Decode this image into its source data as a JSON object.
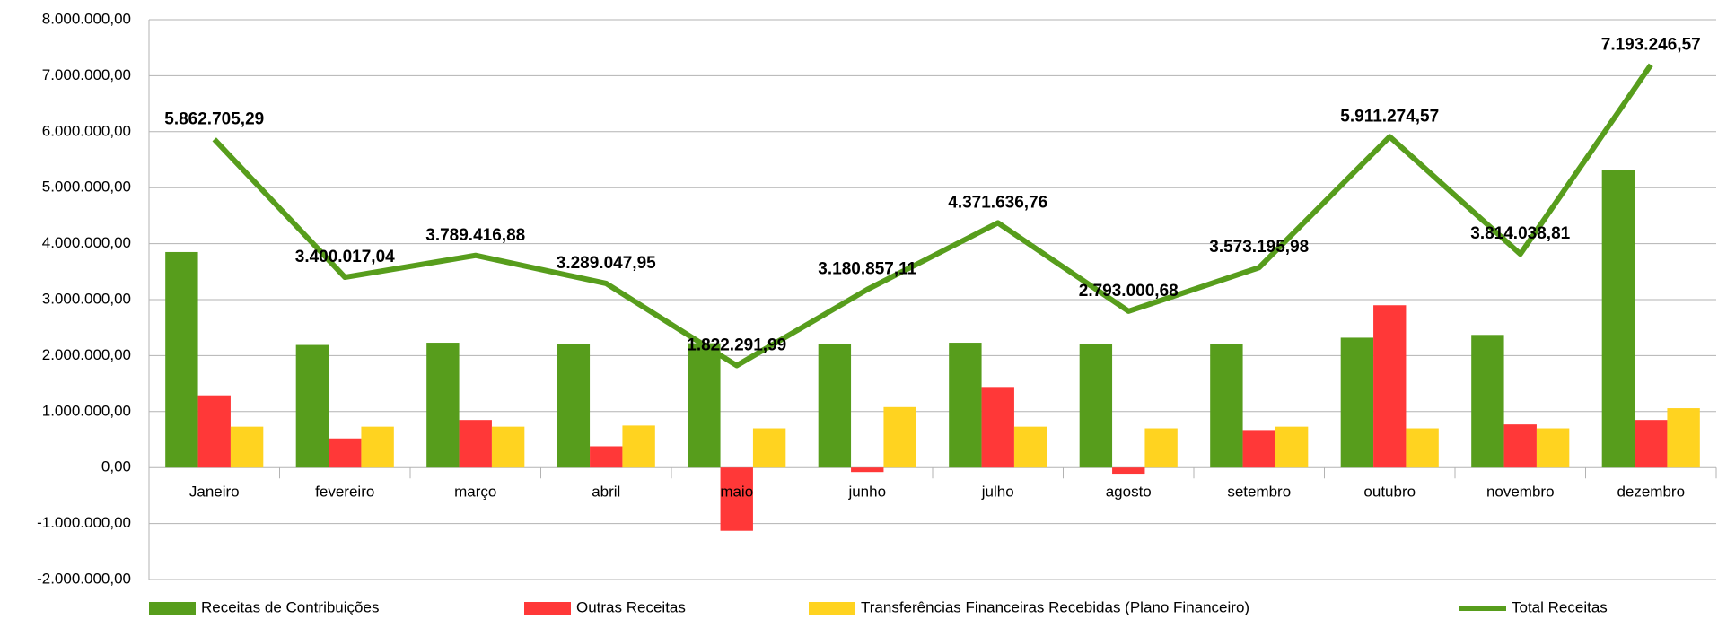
{
  "chart_data": {
    "type": "bar",
    "categories": [
      "Janeiro",
      "fevereiro",
      "março",
      "abril",
      "maio",
      "junho",
      "julho",
      "agosto",
      "setembro",
      "outubro",
      "novembro",
      "dezembro"
    ],
    "series": [
      {
        "name": "Receitas de Contribuições",
        "type": "bar",
        "color": "#579d1c",
        "values": [
          3850000,
          2190000,
          2230000,
          2210000,
          2220000,
          2210000,
          2230000,
          2210000,
          2210000,
          2320000,
          2370000,
          5320000
        ]
      },
      {
        "name": "Outras Receitas",
        "type": "bar",
        "color": "#ff3838",
        "values": [
          1290000,
          520000,
          850000,
          380000,
          -1130000,
          -80000,
          1440000,
          -110000,
          670000,
          2900000,
          770000,
          850000
        ]
      },
      {
        "name": "Transferências Financeiras Recebidas (Plano Financeiro)",
        "type": "bar",
        "color": "#ffd320",
        "values": [
          730000,
          730000,
          730000,
          750000,
          700000,
          1080000,
          730000,
          700000,
          730000,
          700000,
          700000,
          1060000
        ]
      },
      {
        "name": "Total Receitas",
        "type": "line",
        "color": "#579d1c",
        "values": [
          5862705.29,
          3400017.04,
          3789416.88,
          3289047.95,
          1822291.99,
          3180857.11,
          4371636.76,
          2793000.68,
          3573195.98,
          5911274.57,
          3814038.81,
          7193246.57
        ],
        "value_labels": [
          "5.862.705,29",
          "3.400.017,04",
          "3.789.416,88",
          "3.289.047,95",
          "1.822.291,99",
          "3.180.857,11",
          "4.371.636,76",
          "2.793.000,68",
          "3.573.195,98",
          "5.911.274,57",
          "3.814.038,81",
          "7.193.246,57"
        ]
      }
    ],
    "ylim": [
      -2000000,
      8000000
    ],
    "yticks": [
      {
        "value": -2000000,
        "label": "-2.000.000,00"
      },
      {
        "value": -1000000,
        "label": "-1.000.000,00"
      },
      {
        "value": 0,
        "label": "0,00"
      },
      {
        "value": 1000000,
        "label": "1.000.000,00"
      },
      {
        "value": 2000000,
        "label": "2.000.000,00"
      },
      {
        "value": 3000000,
        "label": "3.000.000,00"
      },
      {
        "value": 4000000,
        "label": "4.000.000,00"
      },
      {
        "value": 5000000,
        "label": "5.000.000,00"
      },
      {
        "value": 6000000,
        "label": "6.000.000,00"
      },
      {
        "value": 7000000,
        "label": "7.000.000,00"
      },
      {
        "value": 8000000,
        "label": "8.000.000,00"
      }
    ],
    "grid": true,
    "legend": "bottom"
  }
}
